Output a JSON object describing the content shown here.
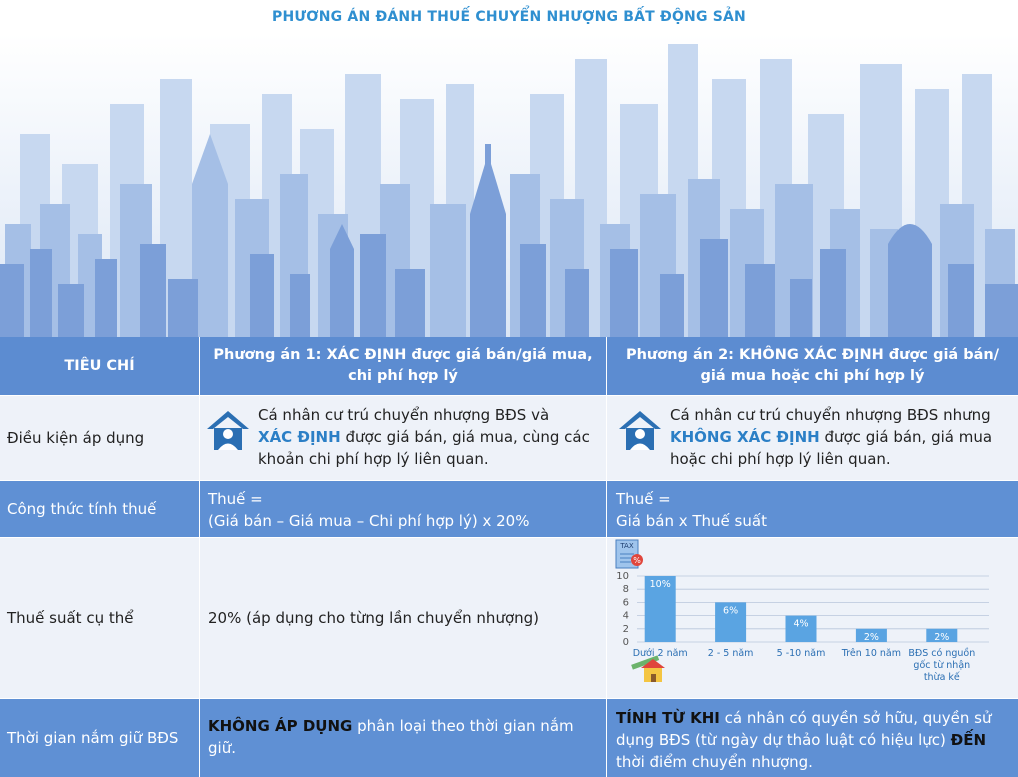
{
  "title": "PHƯƠNG ÁN ĐÁNH THUẾ CHUYỂN NHƯỢNG BẤT ĐỘNG SẢN",
  "header": {
    "col1": "TIÊU CHÍ",
    "col2": "Phương án 1: XÁC ĐỊNH được giá bán/giá mua, chi phí hợp lý",
    "col3": "Phương án 2: KHÔNG XÁC ĐỊNH được giá bán/ giá mua hoặc chi phí hợp lý"
  },
  "rows": {
    "dieu_kien": {
      "label": "Điều kiện áp dụng",
      "opt1_pre": "Cá nhân cư trú chuyển nhượng BĐS và",
      "opt1_hl": "XÁC ĐỊNH",
      "opt1_post": "được giá bán, giá mua, cùng các khoản chi phí hợp lý liên quan.",
      "opt2_pre": "Cá nhân cư trú chuyển nhượng BĐS nhưng",
      "opt2_hl": "KHÔNG XÁC ĐỊNH",
      "opt2_post": "được giá bán, giá mua hoặc chi phí hợp lý liên quan."
    },
    "cong_thuc": {
      "label": "Công thức tính thuế",
      "opt1_line1": "Thuế =",
      "opt1_line2": "(Giá bán – Giá mua – Chi phí hợp lý) x 20%",
      "opt2_line1": "Thuế =",
      "opt2_line2": "Giá bán x Thuế suất"
    },
    "thue_suat": {
      "label": "Thuế suất cụ thể",
      "opt1": "20% (áp dụng cho từng lần chuyển nhượng)"
    },
    "thoi_gian": {
      "label": "Thời gian nắm giữ BĐS",
      "opt1_bold": "KHÔNG ÁP DỤNG",
      "opt1_rest": "phân loại theo thời gian nắm giữ.",
      "opt2_bold1": "TÍNH TỪ KHI",
      "opt2_mid": "cá nhân có quyền sở hữu, quyền sử dụng BĐS (từ ngày dự thảo luật có hiệu lực)",
      "opt2_bold2": "ĐẾN",
      "opt2_end": "thời điểm chuyển nhượng."
    }
  },
  "tax_icon_label": "TAX",
  "tax_icon_symbol": "%",
  "chart_data": {
    "type": "bar",
    "categories": [
      "Dưới 2 năm",
      "2 - 5 năm",
      "5 -10 năm",
      "Trên 10 năm",
      "BĐS có nguồn gốc từ nhận thừa kế"
    ],
    "category_lines": [
      [
        "Dưới 2 năm"
      ],
      [
        "2 - 5 năm"
      ],
      [
        "5 -10 năm"
      ],
      [
        "Trên 10 năm"
      ],
      [
        "BĐS có nguồn",
        "gốc từ nhận",
        "thừa kế"
      ]
    ],
    "values": [
      10,
      6,
      4,
      2,
      2
    ],
    "data_labels": [
      "10%",
      "6%",
      "4%",
      "2%",
      "2%"
    ],
    "yticks": [
      "0",
      "2",
      "4",
      "6",
      "8",
      "10"
    ],
    "ylim": [
      0,
      10
    ],
    "grid": true,
    "bar_color": "#5aa4e2"
  },
  "colors": {
    "header_bg": "#5c8cd1",
    "row_mid_bg": "#5f90d4",
    "row_light_bg": "#eef2f9",
    "accent": "#2b7fc6",
    "title": "#2f8fd0"
  }
}
